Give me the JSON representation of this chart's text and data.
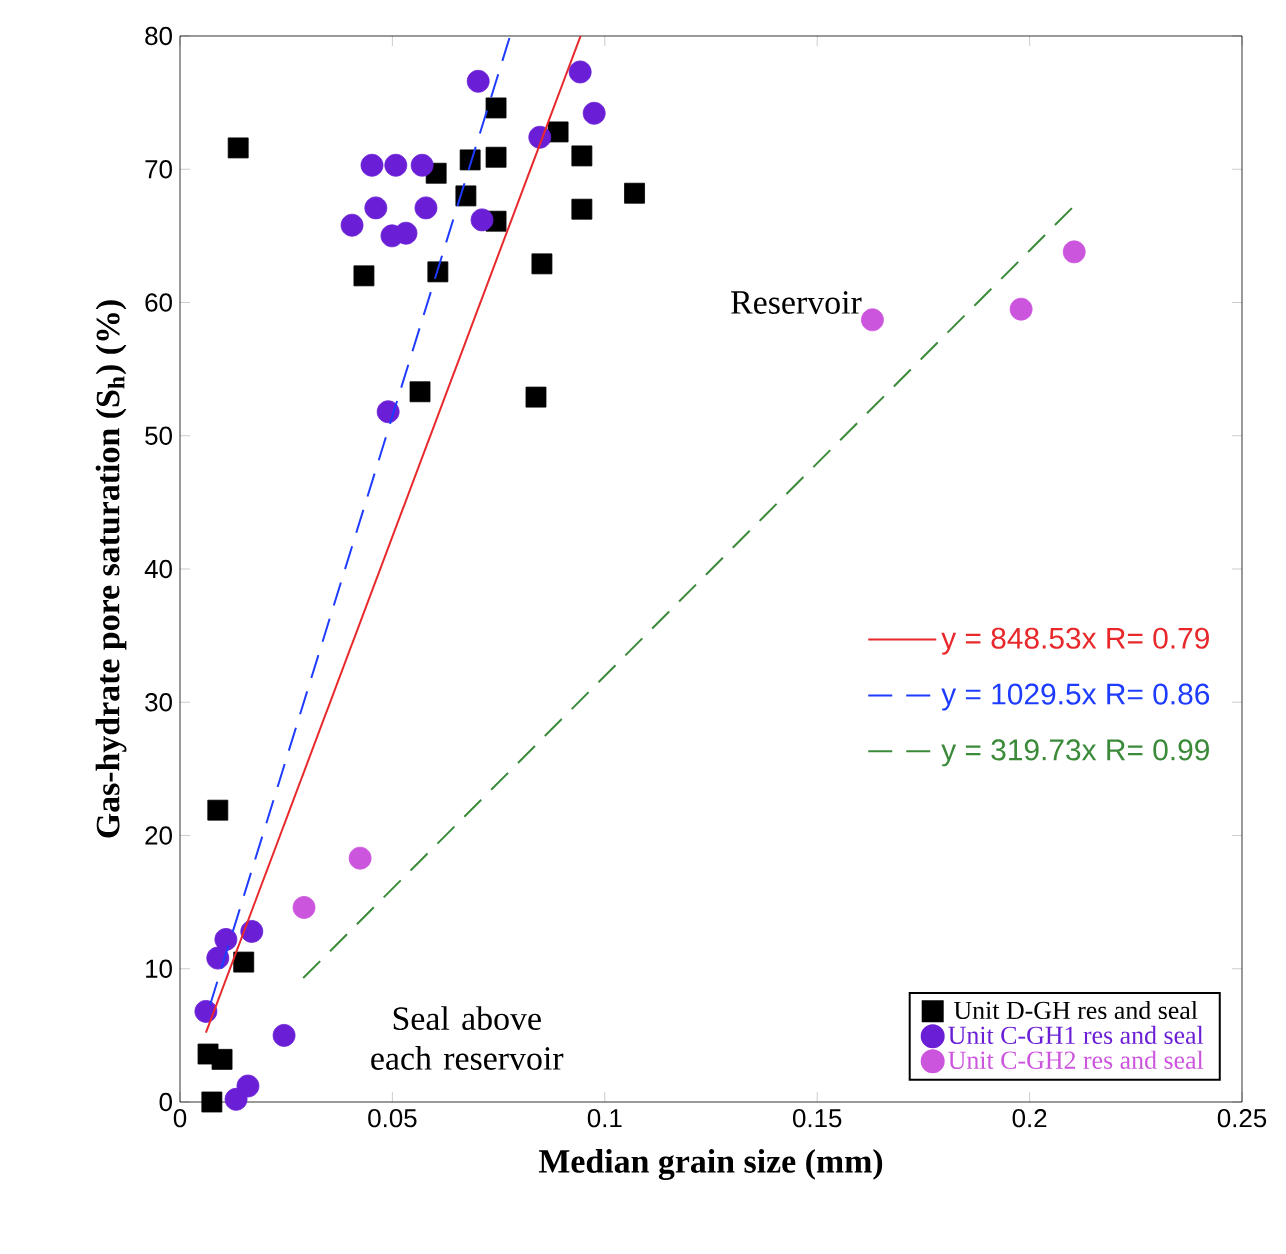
{
  "chart_data": {
    "type": "scatter",
    "xlabel": "Median grain size (mm)",
    "ylabel": "Gas-hydrate pore saturation (S$_{h}$) (%)",
    "xlim": [
      0,
      0.25
    ],
    "xticks": [
      0,
      0.05,
      0.1,
      0.15,
      0.2,
      0.25
    ],
    "ylim": [
      0,
      80
    ],
    "yticks": [
      0,
      10,
      20,
      30,
      40,
      50,
      60,
      70,
      80
    ],
    "grid": false,
    "legend": "bottom right",
    "annotations": [
      "Reservoir",
      "Seal above each reservoir"
    ],
    "series": [
      {
        "name": "Unit D-GH res and seal",
        "marker": "square",
        "color": "#000000",
        "x": [
          0.0137,
          0.0089,
          0.015,
          0.0066,
          0.0099,
          0.0075,
          0.0744,
          0.089,
          0.0946,
          0.0683,
          0.0744,
          0.0603,
          0.0673,
          0.107,
          0.0946,
          0.0744,
          0.0433,
          0.0607,
          0.0852,
          0.0565,
          0.0838
        ],
        "values": [
          71.6,
          21.9,
          10.5,
          3.6,
          3.2,
          0,
          74.6,
          72.8,
          71.0,
          70.7,
          70.9,
          69.7,
          68.0,
          68.2,
          67.0,
          66.1,
          62.0,
          62.3,
          62.9,
          53.3,
          52.9
        ]
      },
      {
        "name": "Unit C-GH1 res and seal",
        "marker": "circle",
        "color": "#6a1fd6",
        "x": [
          0.0702,
          0.0942,
          0.0975,
          0.0847,
          0.0452,
          0.0508,
          0.057,
          0.0461,
          0.0405,
          0.0499,
          0.0532,
          0.0579,
          0.0711,
          0.049,
          0.0061,
          0.0089,
          0.0108,
          0.0169,
          0.0245,
          0.016,
          0.0132
        ],
        "values": [
          76.6,
          77.3,
          74.2,
          72.4,
          70.3,
          70.3,
          70.3,
          67.1,
          65.8,
          65.0,
          65.2,
          67.1,
          66.2,
          51.8,
          6.8,
          10.8,
          12.2,
          12.8,
          5.0,
          1.2,
          0.2
        ]
      },
      {
        "name": "Unit C-GH2 res and seal",
        "marker": "circle",
        "color": "#cc55dd",
        "x": [
          0.0292,
          0.0424,
          0.163,
          0.198,
          0.2105
        ],
        "values": [
          14.6,
          18.3,
          58.7,
          59.5,
          63.8
        ]
      },
      {
        "name": "y = 848.53x  R= 0.79",
        "type": "line",
        "line_style": "solid",
        "color": "#e8282a",
        "x": [
          0.0061,
          0.0943
        ],
        "values": [
          5.2,
          80
        ]
      },
      {
        "name": "y = 1029.5x  R= 0.86",
        "type": "line",
        "line_style": "dashed",
        "color": "#1e3cff",
        "x": [
          0.0071,
          0.0777
        ],
        "values": [
          7.3,
          80
        ]
      },
      {
        "name": "y = 319.73x  R= 0.99",
        "type": "line",
        "line_style": "dashed",
        "color": "#3a8a3a",
        "x": [
          0.029,
          0.21
        ],
        "values": [
          9.3,
          67.1
        ]
      }
    ]
  }
}
